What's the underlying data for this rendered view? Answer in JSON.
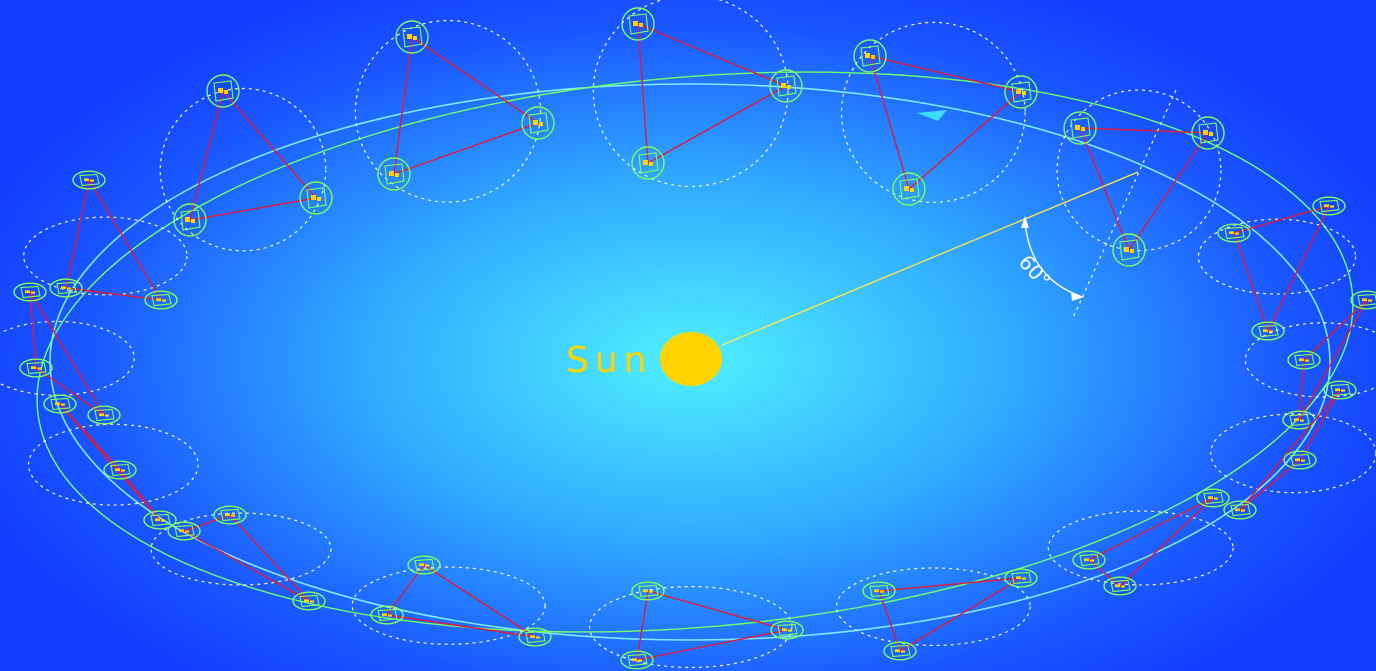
{
  "diagram": {
    "sun_label": "Sun",
    "angle_label": "60°",
    "colors": {
      "background_center": "#4ff0ff",
      "background_edge": "#123dff",
      "sun": "#ffd400",
      "orbit_primary": "#7fe9ff",
      "orbit_secondary": "#6dff6d",
      "arms": "#e0193a",
      "spacecraft_ring": "#7cff5a",
      "direction_arrow": "#3fdcff",
      "angle_marker": "#ffffff"
    },
    "constellation_positions": 16,
    "spacecraft_per_constellation": 3
  }
}
